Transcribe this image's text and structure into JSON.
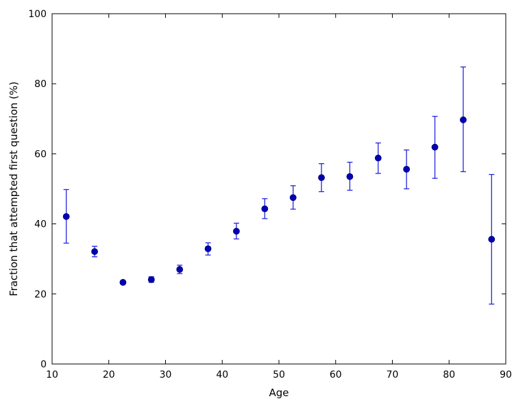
{
  "chart_data": {
    "type": "scatter",
    "title": "",
    "xlabel": "Age",
    "ylabel": "Fraction that attempted first question (%)",
    "xlim": [
      10,
      90
    ],
    "ylim": [
      0,
      100
    ],
    "xticks": [
      10,
      20,
      30,
      40,
      50,
      60,
      70,
      80,
      90
    ],
    "yticks": [
      0,
      20,
      40,
      60,
      80,
      100
    ],
    "grid": false,
    "legend": "none",
    "colors": {
      "marker": "#0000b3",
      "errorbar": "#2424e0",
      "axes": "#000000"
    },
    "points": [
      {
        "x": 12.5,
        "y": 42.1,
        "err_low": 34.5,
        "err_high": 49.8
      },
      {
        "x": 17.5,
        "y": 32.1,
        "err_low": 30.6,
        "err_high": 33.6
      },
      {
        "x": 22.5,
        "y": 23.3,
        "err_low": 22.9,
        "err_high": 23.7
      },
      {
        "x": 27.5,
        "y": 24.1,
        "err_low": 23.3,
        "err_high": 24.9
      },
      {
        "x": 32.5,
        "y": 27.0,
        "err_low": 25.8,
        "err_high": 28.2
      },
      {
        "x": 37.5,
        "y": 32.9,
        "err_low": 31.1,
        "err_high": 34.6
      },
      {
        "x": 42.5,
        "y": 37.9,
        "err_low": 35.7,
        "err_high": 40.2
      },
      {
        "x": 47.5,
        "y": 44.3,
        "err_low": 41.5,
        "err_high": 47.2
      },
      {
        "x": 52.5,
        "y": 47.5,
        "err_low": 44.2,
        "err_high": 50.9
      },
      {
        "x": 57.5,
        "y": 53.2,
        "err_low": 49.2,
        "err_high": 57.2
      },
      {
        "x": 62.5,
        "y": 53.5,
        "err_low": 49.6,
        "err_high": 57.6
      },
      {
        "x": 67.5,
        "y": 58.8,
        "err_low": 54.4,
        "err_high": 63.1
      },
      {
        "x": 72.5,
        "y": 55.6,
        "err_low": 50.0,
        "err_high": 61.1
      },
      {
        "x": 77.5,
        "y": 61.9,
        "err_low": 53.0,
        "err_high": 70.7
      },
      {
        "x": 82.5,
        "y": 69.7,
        "err_low": 54.9,
        "err_high": 84.8
      },
      {
        "x": 87.5,
        "y": 35.6,
        "err_low": 17.1,
        "err_high": 54.1
      }
    ]
  }
}
